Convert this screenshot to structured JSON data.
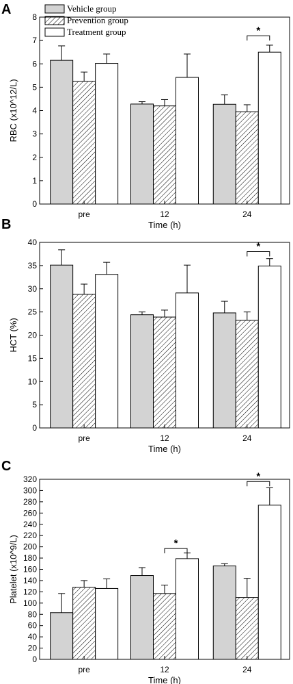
{
  "legend": [
    "Vehicle group",
    "Prevention group",
    "Treatment group"
  ],
  "series_styles": [
    {
      "fill": "#d3d3d3",
      "pattern": "none"
    },
    {
      "fill": "#ffffff",
      "pattern": "hatch"
    },
    {
      "fill": "#ffffff",
      "pattern": "none"
    }
  ],
  "chart_data": [
    {
      "type": "bar",
      "panel": "A",
      "categories": [
        "pre",
        "12",
        "24"
      ],
      "xlabel": "Time (h)",
      "ylabel": "RBC (x10^12/L)",
      "ylim": [
        0,
        8
      ],
      "yticks": [
        0,
        1,
        2,
        3,
        4,
        5,
        6,
        7,
        8
      ],
      "legend_position": "top-left",
      "series": [
        {
          "name": "Vehicle group",
          "values": [
            6.15,
            4.28,
            4.27
          ],
          "errors": [
            0.62,
            0.1,
            0.4
          ]
        },
        {
          "name": "Prevention group",
          "values": [
            5.25,
            4.2,
            3.95
          ],
          "errors": [
            0.4,
            0.27,
            0.3
          ]
        },
        {
          "name": "Treatment group",
          "values": [
            6.02,
            5.42,
            6.5
          ],
          "errors": [
            0.4,
            1.0,
            0.3
          ]
        }
      ],
      "significance": [
        {
          "category": "24",
          "between": [
            1,
            2
          ],
          "label": "*",
          "level": 7.2
        }
      ]
    },
    {
      "type": "bar",
      "panel": "B",
      "categories": [
        "pre",
        "12",
        "24"
      ],
      "xlabel": "Time (h)",
      "ylabel": "HCT (%)",
      "ylim": [
        0,
        40
      ],
      "yticks": [
        0,
        5,
        10,
        15,
        20,
        25,
        30,
        35,
        40
      ],
      "series": [
        {
          "name": "Vehicle group",
          "values": [
            35.1,
            24.4,
            24.8
          ],
          "errors": [
            3.3,
            0.6,
            2.5
          ]
        },
        {
          "name": "Prevention group",
          "values": [
            28.8,
            23.9,
            23.2
          ],
          "errors": [
            2.2,
            1.5,
            1.8
          ]
        },
        {
          "name": "Treatment group",
          "values": [
            33.1,
            29.1,
            34.9
          ],
          "errors": [
            2.6,
            6.0,
            1.6
          ]
        }
      ],
      "significance": [
        {
          "category": "24",
          "between": [
            1,
            2
          ],
          "label": "*",
          "level": 38.0
        }
      ]
    },
    {
      "type": "bar",
      "panel": "C",
      "categories": [
        "pre",
        "12",
        "24"
      ],
      "xlabel": "Time (h)",
      "ylabel": "Platelet (x10^9/L)",
      "ylim": [
        0,
        320
      ],
      "yticks": [
        0,
        20,
        40,
        60,
        80,
        100,
        120,
        140,
        160,
        180,
        200,
        220,
        240,
        260,
        280,
        300,
        320
      ],
      "series": [
        {
          "name": "Vehicle group",
          "values": [
            83,
            149,
            166
          ],
          "errors": [
            34,
            14,
            4
          ]
        },
        {
          "name": "Prevention group",
          "values": [
            128,
            117,
            110
          ],
          "errors": [
            12,
            15,
            34
          ]
        },
        {
          "name": "Treatment group",
          "values": [
            126,
            179,
            274
          ],
          "errors": [
            17,
            10,
            31
          ]
        }
      ],
      "significance": [
        {
          "category": "12",
          "between": [
            1,
            2
          ],
          "label": "*",
          "level": 197
        },
        {
          "category": "24",
          "between": [
            1,
            2
          ],
          "label": "*",
          "level": 316
        }
      ]
    }
  ]
}
